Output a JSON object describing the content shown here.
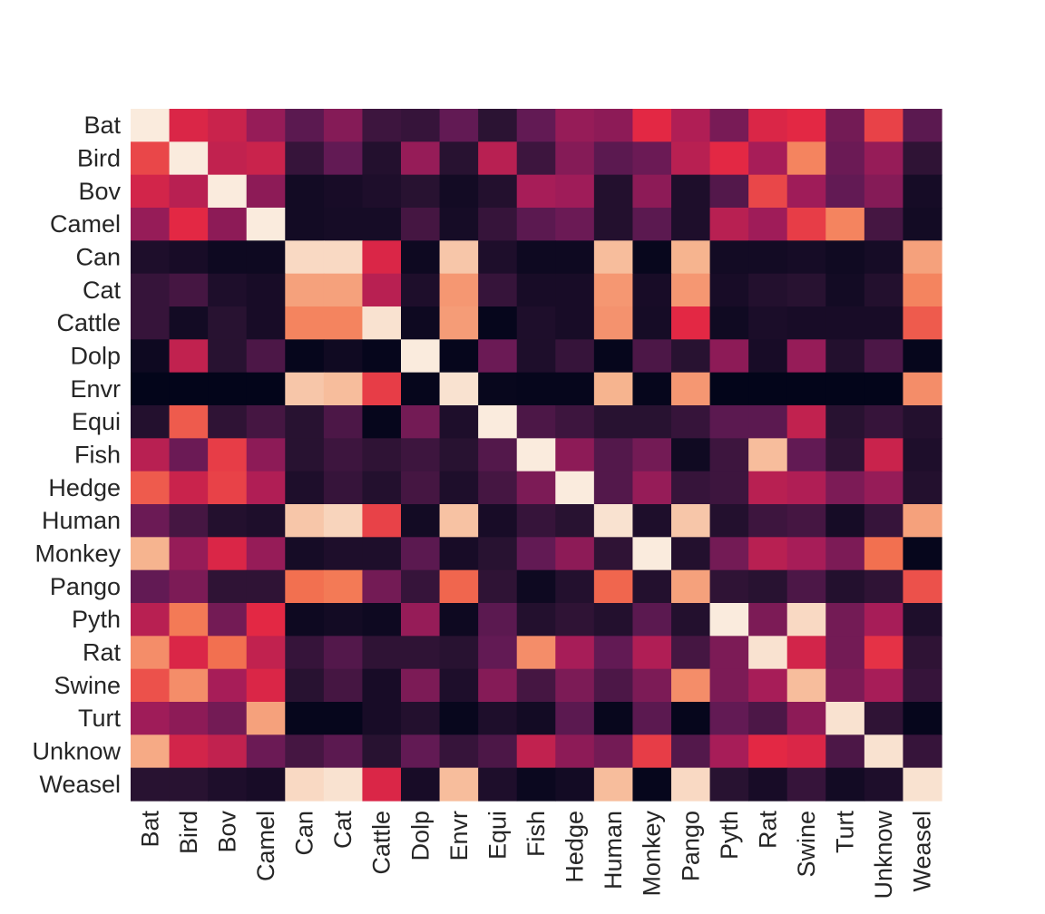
{
  "chart_data": {
    "type": "heatmap",
    "title": "",
    "xlabel": "",
    "ylabel": "",
    "x_categories": [
      "Bat",
      "Bird",
      "Bov",
      "Camel",
      "Can",
      "Cat",
      "Cattle",
      "Dolp",
      "Envr",
      "Equi",
      "Fish",
      "Hedge",
      "Human",
      "Monkey",
      "Pango",
      "Pyth",
      "Rat",
      "Swine",
      "Turt",
      "Unknow",
      "Weasel"
    ],
    "y_categories": [
      "Bat",
      "Bird",
      "Bov",
      "Camel",
      "Can",
      "Cat",
      "Cattle",
      "Dolp",
      "Envr",
      "Equi",
      "Fish",
      "Hedge",
      "Human",
      "Monkey",
      "Pango",
      "Pyth",
      "Rat",
      "Swine",
      "Turt",
      "Unknow",
      "Weasel"
    ],
    "value_range": [
      0,
      1
    ],
    "colormap": "rocket",
    "colorbar": false,
    "grid": false,
    "values": [
      [
        1.0,
        0.58,
        0.54,
        0.42,
        0.28,
        0.38,
        0.2,
        0.18,
        0.3,
        0.15,
        0.3,
        0.42,
        0.4,
        0.6,
        0.48,
        0.35,
        0.58,
        0.6,
        0.34,
        0.65,
        0.28
      ],
      [
        0.66,
        1.0,
        0.52,
        0.54,
        0.18,
        0.3,
        0.12,
        0.42,
        0.14,
        0.5,
        0.2,
        0.38,
        0.28,
        0.32,
        0.5,
        0.6,
        0.46,
        0.78,
        0.32,
        0.42,
        0.16
      ],
      [
        0.56,
        0.5,
        1.0,
        0.4,
        0.06,
        0.08,
        0.1,
        0.14,
        0.06,
        0.12,
        0.46,
        0.44,
        0.12,
        0.4,
        0.1,
        0.26,
        0.66,
        0.44,
        0.3,
        0.38,
        0.07
      ],
      [
        0.42,
        0.6,
        0.4,
        1.0,
        0.06,
        0.07,
        0.07,
        0.22,
        0.07,
        0.18,
        0.28,
        0.32,
        0.12,
        0.28,
        0.1,
        0.5,
        0.44,
        0.64,
        0.78,
        0.22,
        0.06
      ],
      [
        0.1,
        0.08,
        0.04,
        0.04,
        0.96,
        0.96,
        0.58,
        0.04,
        0.92,
        0.1,
        0.04,
        0.04,
        0.9,
        0.02,
        0.88,
        0.06,
        0.06,
        0.07,
        0.05,
        0.07,
        0.84
      ],
      [
        0.18,
        0.22,
        0.1,
        0.08,
        0.84,
        0.84,
        0.5,
        0.1,
        0.82,
        0.18,
        0.08,
        0.08,
        0.82,
        0.08,
        0.82,
        0.08,
        0.12,
        0.14,
        0.06,
        0.12,
        0.78
      ],
      [
        0.18,
        0.06,
        0.14,
        0.08,
        0.78,
        0.78,
        0.98,
        0.04,
        0.83,
        0.01,
        0.1,
        0.08,
        0.81,
        0.07,
        0.6,
        0.05,
        0.09,
        0.08,
        0.08,
        0.08,
        0.7
      ],
      [
        0.04,
        0.52,
        0.14,
        0.24,
        0.01,
        0.05,
        0.01,
        1.0,
        0.01,
        0.32,
        0.1,
        0.18,
        0.01,
        0.24,
        0.14,
        0.4,
        0.08,
        0.42,
        0.12,
        0.24,
        0.01
      ],
      [
        0.0,
        0.0,
        0.0,
        0.0,
        0.92,
        0.9,
        0.64,
        0.01,
        0.98,
        0.02,
        0.01,
        0.01,
        0.88,
        0.01,
        0.82,
        0.0,
        0.0,
        0.0,
        0.0,
        0.0,
        0.8
      ],
      [
        0.12,
        0.7,
        0.16,
        0.22,
        0.14,
        0.24,
        0.01,
        0.34,
        0.1,
        1.0,
        0.24,
        0.2,
        0.14,
        0.14,
        0.18,
        0.28,
        0.28,
        0.52,
        0.14,
        0.18,
        0.12
      ],
      [
        0.5,
        0.32,
        0.64,
        0.4,
        0.14,
        0.2,
        0.16,
        0.2,
        0.14,
        0.26,
        1.0,
        0.4,
        0.26,
        0.34,
        0.05,
        0.2,
        0.9,
        0.3,
        0.16,
        0.54,
        0.1
      ],
      [
        0.7,
        0.54,
        0.65,
        0.48,
        0.1,
        0.18,
        0.12,
        0.22,
        0.1,
        0.22,
        0.36,
        1.0,
        0.26,
        0.42,
        0.18,
        0.2,
        0.5,
        0.48,
        0.36,
        0.42,
        0.12
      ],
      [
        0.32,
        0.22,
        0.12,
        0.1,
        0.92,
        0.95,
        0.65,
        0.06,
        0.91,
        0.08,
        0.18,
        0.14,
        0.98,
        0.1,
        0.92,
        0.12,
        0.2,
        0.22,
        0.07,
        0.18,
        0.84
      ],
      [
        0.88,
        0.42,
        0.58,
        0.42,
        0.07,
        0.1,
        0.1,
        0.28,
        0.08,
        0.14,
        0.3,
        0.4,
        0.16,
        1.0,
        0.12,
        0.34,
        0.5,
        0.46,
        0.36,
        0.74,
        0.01
      ],
      [
        0.3,
        0.36,
        0.16,
        0.16,
        0.74,
        0.76,
        0.34,
        0.18,
        0.72,
        0.16,
        0.04,
        0.12,
        0.72,
        0.12,
        0.84,
        0.16,
        0.14,
        0.24,
        0.12,
        0.16,
        0.68
      ],
      [
        0.5,
        0.76,
        0.34,
        0.6,
        0.04,
        0.06,
        0.04,
        0.42,
        0.04,
        0.28,
        0.12,
        0.16,
        0.12,
        0.28,
        0.12,
        1.0,
        0.36,
        0.96,
        0.34,
        0.46,
        0.1
      ],
      [
        0.8,
        0.58,
        0.74,
        0.52,
        0.18,
        0.26,
        0.16,
        0.16,
        0.14,
        0.3,
        0.8,
        0.46,
        0.3,
        0.48,
        0.22,
        0.36,
        0.98,
        0.56,
        0.34,
        0.62,
        0.16
      ],
      [
        0.68,
        0.8,
        0.46,
        0.58,
        0.14,
        0.22,
        0.08,
        0.36,
        0.1,
        0.38,
        0.22,
        0.36,
        0.24,
        0.36,
        0.8,
        0.36,
        0.46,
        0.9,
        0.36,
        0.46,
        0.18
      ],
      [
        0.44,
        0.4,
        0.34,
        0.84,
        0.01,
        0.01,
        0.08,
        0.12,
        0.02,
        0.1,
        0.06,
        0.28,
        0.02,
        0.28,
        0.01,
        0.3,
        0.24,
        0.4,
        0.98,
        0.16,
        0.01
      ],
      [
        0.86,
        0.56,
        0.52,
        0.32,
        0.22,
        0.28,
        0.14,
        0.3,
        0.18,
        0.24,
        0.52,
        0.4,
        0.34,
        0.64,
        0.26,
        0.46,
        0.6,
        0.58,
        0.24,
        0.98,
        0.18
      ],
      [
        0.14,
        0.14,
        0.1,
        0.08,
        0.96,
        0.98,
        0.58,
        0.08,
        0.9,
        0.1,
        0.03,
        0.06,
        0.9,
        0.01,
        0.96,
        0.14,
        0.08,
        0.18,
        0.06,
        0.1,
        0.98
      ]
    ]
  }
}
